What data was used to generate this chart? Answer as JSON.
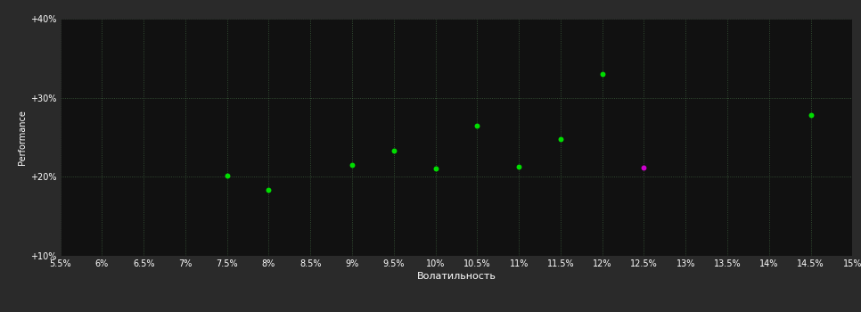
{
  "background_color": "#2a2a2a",
  "plot_bg_color": "#111111",
  "grid_color": "#3a5a3a",
  "text_color": "#ffffff",
  "xlabel": "Волатильность",
  "ylabel": "Performance",
  "xlim": [
    0.055,
    0.15
  ],
  "ylim": [
    0.1,
    0.4
  ],
  "xticks": [
    0.055,
    0.06,
    0.065,
    0.07,
    0.075,
    0.08,
    0.085,
    0.09,
    0.095,
    0.1,
    0.105,
    0.11,
    0.115,
    0.12,
    0.125,
    0.13,
    0.135,
    0.14,
    0.145,
    0.15
  ],
  "yticks": [
    0.1,
    0.2,
    0.3,
    0.4
  ],
  "ytick_labels": [
    "+10%",
    "+20%",
    "+30%",
    "+40%"
  ],
  "green_dots": [
    [
      0.075,
      0.201
    ],
    [
      0.08,
      0.183
    ],
    [
      0.09,
      0.215
    ],
    [
      0.095,
      0.233
    ],
    [
      0.1,
      0.21
    ],
    [
      0.105,
      0.265
    ],
    [
      0.11,
      0.213
    ],
    [
      0.115,
      0.248
    ],
    [
      0.12,
      0.33
    ],
    [
      0.145,
      0.278
    ]
  ],
  "magenta_dots": [
    [
      0.125,
      0.212
    ]
  ],
  "dot_size": 18,
  "green_color": "#00dd00",
  "magenta_color": "#cc00cc",
  "grid_linestyle": ":",
  "grid_linewidth": 0.6,
  "tick_fontsize": 7,
  "label_fontsize": 8,
  "ylabel_fontsize": 7
}
